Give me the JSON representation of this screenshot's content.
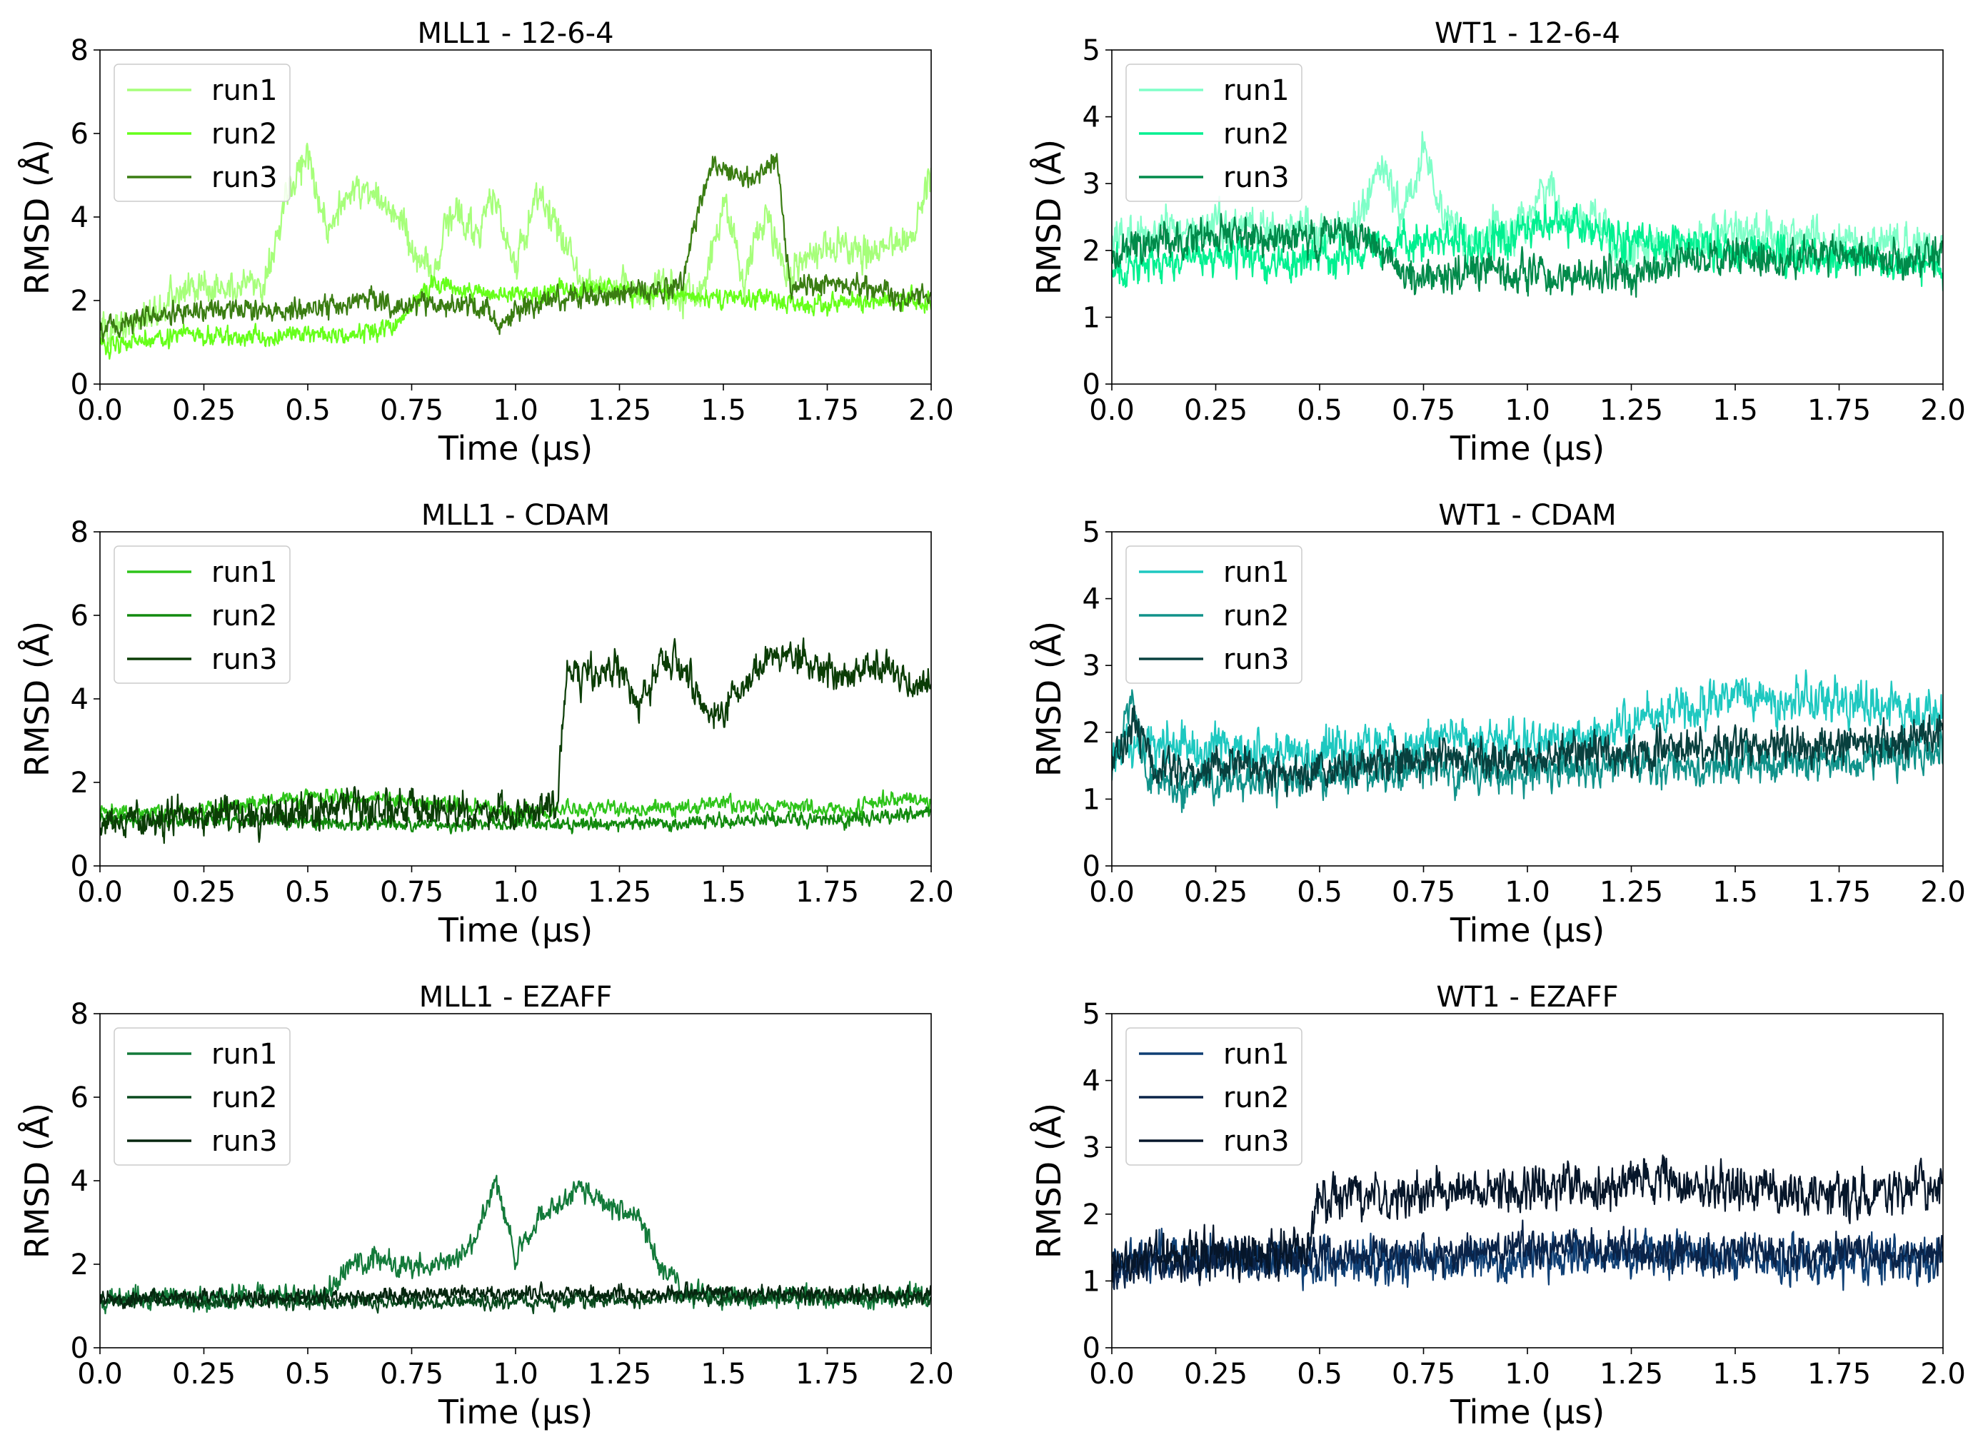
{
  "chart_data": [
    {
      "type": "line",
      "title": "MLL1 - 12-6-4",
      "xlabel": "Time (µs)",
      "ylabel": "RMSD (Å)",
      "xlim": [
        0,
        2.0
      ],
      "ylim": [
        0,
        8
      ],
      "xticks": [
        0.0,
        0.25,
        0.5,
        0.75,
        1.0,
        1.25,
        1.5,
        1.75,
        2.0
      ],
      "xtick_labels": [
        "0.0",
        "0.25",
        "0.5",
        "0.75",
        "1.0",
        "1.25",
        "1.5",
        "1.75",
        "2.0"
      ],
      "yticks": [
        0,
        2,
        4,
        6,
        8
      ],
      "ytick_labels": [
        "0",
        "2",
        "4",
        "6",
        "8"
      ],
      "legend_position": "top-left",
      "series": [
        {
          "name": "run1",
          "color": "#a6ff7a",
          "x": [
            0,
            0.1,
            0.2,
            0.3,
            0.4,
            0.45,
            0.5,
            0.55,
            0.6,
            0.65,
            0.7,
            0.75,
            0.8,
            0.85,
            0.9,
            0.95,
            1.0,
            1.05,
            1.1,
            1.15,
            1.2,
            1.25,
            1.3,
            1.35,
            1.4,
            1.45,
            1.5,
            1.55,
            1.6,
            1.65,
            1.7,
            1.75,
            1.8,
            1.85,
            1.9,
            1.95,
            2.0
          ],
          "y": [
            1.2,
            1.6,
            2.2,
            2.4,
            2.5,
            4.6,
            5.4,
            3.6,
            4.6,
            4.7,
            4.2,
            3.2,
            2.6,
            4.2,
            3.6,
            4.5,
            2.8,
            4.5,
            3.9,
            2.6,
            2.3,
            2.4,
            2.3,
            2.3,
            2.2,
            2.2,
            4.4,
            2.4,
            4.2,
            2.5,
            3.0,
            3.3,
            3.3,
            3.1,
            3.3,
            3.4,
            5.0
          ],
          "noise": 0.45
        },
        {
          "name": "run2",
          "color": "#66ff1a",
          "x": [
            0,
            0.1,
            0.2,
            0.3,
            0.4,
            0.5,
            0.6,
            0.7,
            0.75,
            0.8,
            0.9,
            1.0,
            1.1,
            1.2,
            1.3,
            1.4,
            1.5,
            1.6,
            1.65,
            1.7,
            1.8,
            1.9,
            2.0
          ],
          "y": [
            0.9,
            1.1,
            1.2,
            1.1,
            1.1,
            1.2,
            1.2,
            1.3,
            1.9,
            2.4,
            2.2,
            2.2,
            2.2,
            2.3,
            2.1,
            2.2,
            2.0,
            2.1,
            1.9,
            1.9,
            1.9,
            2.0,
            2.0
          ],
          "noise": 0.25
        },
        {
          "name": "run3",
          "color": "#3a7d12",
          "x": [
            0,
            0.1,
            0.2,
            0.3,
            0.4,
            0.5,
            0.6,
            0.65,
            0.7,
            0.8,
            0.9,
            0.97,
            1.0,
            1.05,
            1.1,
            1.15,
            1.2,
            1.3,
            1.4,
            1.43,
            1.47,
            1.5,
            1.55,
            1.6,
            1.63,
            1.66,
            1.7,
            1.8,
            1.9,
            2.0
          ],
          "y": [
            1.3,
            1.6,
            1.7,
            1.8,
            1.8,
            1.8,
            1.9,
            2.1,
            1.9,
            1.9,
            1.9,
            1.4,
            1.8,
            1.9,
            2.0,
            2.2,
            2.1,
            2.2,
            2.3,
            3.8,
            5.3,
            5.2,
            4.9,
            5.2,
            5.4,
            2.4,
            2.4,
            2.4,
            2.1,
            2.1
          ],
          "noise": 0.3
        }
      ]
    },
    {
      "type": "line",
      "title": "WT1 - 12-6-4",
      "xlabel": "Time (µs)",
      "ylabel": "RMSD (Å)",
      "xlim": [
        0,
        2.0
      ],
      "ylim": [
        0,
        5
      ],
      "xticks": [
        0.0,
        0.25,
        0.5,
        0.75,
        1.0,
        1.25,
        1.5,
        1.75,
        2.0
      ],
      "xtick_labels": [
        "0.0",
        "0.25",
        "0.5",
        "0.75",
        "1.0",
        "1.25",
        "1.5",
        "1.75",
        "2.0"
      ],
      "yticks": [
        0,
        1,
        2,
        3,
        4,
        5
      ],
      "ytick_labels": [
        "0",
        "1",
        "2",
        "3",
        "4",
        "5"
      ],
      "legend_position": "top-left",
      "series": [
        {
          "name": "run1",
          "color": "#7fffc8",
          "x": [
            0,
            0.1,
            0.2,
            0.3,
            0.4,
            0.5,
            0.6,
            0.65,
            0.7,
            0.75,
            0.8,
            0.85,
            0.9,
            1.0,
            1.05,
            1.1,
            1.15,
            1.2,
            1.3,
            1.4,
            1.5,
            1.6,
            1.7,
            1.8,
            1.9,
            2.0
          ],
          "y": [
            2.1,
            2.3,
            2.3,
            2.4,
            2.3,
            2.3,
            2.4,
            3.3,
            2.5,
            3.5,
            2.4,
            2.2,
            2.2,
            2.5,
            3.0,
            2.4,
            2.6,
            2.1,
            2.0,
            2.1,
            2.3,
            2.2,
            2.2,
            2.0,
            2.1,
            2.0
          ],
          "noise": 0.35
        },
        {
          "name": "run2",
          "color": "#00f090",
          "x": [
            0,
            0.1,
            0.2,
            0.3,
            0.4,
            0.5,
            0.6,
            0.7,
            0.8,
            0.9,
            1.0,
            1.1,
            1.2,
            1.3,
            1.4,
            1.5,
            1.6,
            1.7,
            1.8,
            1.9,
            2.0
          ],
          "y": [
            1.7,
            1.8,
            1.9,
            1.9,
            1.8,
            1.9,
            2.0,
            2.1,
            2.2,
            2.1,
            2.3,
            2.4,
            2.2,
            2.1,
            2.1,
            2.0,
            2.0,
            1.9,
            1.9,
            1.8,
            1.8
          ],
          "noise": 0.3
        },
        {
          "name": "run3",
          "color": "#008a4a",
          "x": [
            0,
            0.1,
            0.2,
            0.3,
            0.4,
            0.5,
            0.6,
            0.65,
            0.7,
            0.8,
            0.9,
            1.0,
            1.1,
            1.2,
            1.3,
            1.4,
            1.5,
            1.6,
            1.7,
            1.8,
            1.9,
            2.0
          ],
          "y": [
            1.9,
            2.1,
            2.2,
            2.2,
            2.2,
            2.2,
            2.3,
            2.0,
            1.6,
            1.6,
            1.7,
            1.6,
            1.6,
            1.6,
            1.7,
            1.9,
            1.9,
            1.8,
            1.9,
            1.9,
            1.9,
            1.9
          ],
          "noise": 0.3
        }
      ]
    },
    {
      "type": "line",
      "title": "MLL1 - CDAM",
      "xlabel": "Time (µs)",
      "ylabel": "RMSD (Å)",
      "xlim": [
        0,
        2.0
      ],
      "ylim": [
        0,
        8
      ],
      "xticks": [
        0.0,
        0.25,
        0.5,
        0.75,
        1.0,
        1.25,
        1.5,
        1.75,
        2.0
      ],
      "xtick_labels": [
        "0.0",
        "0.25",
        "0.5",
        "0.75",
        "1.0",
        "1.25",
        "1.5",
        "1.75",
        "2.0"
      ],
      "yticks": [
        0,
        2,
        4,
        6,
        8
      ],
      "ytick_labels": [
        "0",
        "2",
        "4",
        "6",
        "8"
      ],
      "legend_position": "top-left",
      "series": [
        {
          "name": "run1",
          "color": "#2ec41a",
          "x": [
            0,
            0.2,
            0.4,
            0.5,
            0.6,
            0.7,
            0.8,
            0.9,
            1.0,
            1.1,
            1.2,
            1.3,
            1.4,
            1.5,
            1.6,
            1.7,
            1.8,
            1.9,
            2.0
          ],
          "y": [
            1.3,
            1.3,
            1.5,
            1.7,
            1.6,
            1.6,
            1.5,
            1.4,
            1.3,
            1.3,
            1.4,
            1.4,
            1.4,
            1.5,
            1.4,
            1.4,
            1.3,
            1.6,
            1.6
          ],
          "noise": 0.2
        },
        {
          "name": "run2",
          "color": "#128a0e",
          "x": [
            0,
            0.2,
            0.4,
            0.6,
            0.8,
            1.0,
            1.2,
            1.4,
            1.6,
            1.8,
            2.0
          ],
          "y": [
            1.1,
            1.1,
            1.1,
            1.0,
            1.0,
            1.0,
            1.0,
            1.0,
            1.1,
            1.1,
            1.3
          ],
          "noise": 0.18
        },
        {
          "name": "run3",
          "color": "#0b3d06",
          "x": [
            0,
            0.2,
            0.4,
            0.5,
            0.6,
            0.8,
            1.0,
            1.1,
            1.12,
            1.15,
            1.25,
            1.3,
            1.35,
            1.4,
            1.45,
            1.5,
            1.55,
            1.6,
            1.7,
            1.8,
            1.9,
            1.95,
            2.0
          ],
          "y": [
            1.0,
            1.2,
            1.2,
            1.3,
            1.4,
            1.4,
            1.3,
            1.4,
            4.5,
            4.6,
            4.8,
            3.8,
            5.0,
            4.8,
            3.8,
            3.6,
            4.4,
            5.0,
            4.9,
            4.6,
            4.8,
            4.2,
            4.5
          ],
          "noise": 0.45
        }
      ]
    },
    {
      "type": "line",
      "title": "WT1 - CDAM",
      "xlabel": "Time (µs)",
      "ylabel": "RMSD (Å)",
      "xlim": [
        0,
        2.0
      ],
      "ylim": [
        0,
        5
      ],
      "xticks": [
        0.0,
        0.25,
        0.5,
        0.75,
        1.0,
        1.25,
        1.5,
        1.75,
        2.0
      ],
      "xtick_labels": [
        "0.0",
        "0.25",
        "0.5",
        "0.75",
        "1.0",
        "1.25",
        "1.5",
        "1.75",
        "2.0"
      ],
      "yticks": [
        0,
        1,
        2,
        3,
        4,
        5
      ],
      "ytick_labels": [
        "0",
        "1",
        "2",
        "3",
        "4",
        "5"
      ],
      "legend_position": "top-left",
      "series": [
        {
          "name": "run1",
          "color": "#1ec8c0",
          "x": [
            0,
            0.1,
            0.2,
            0.3,
            0.4,
            0.5,
            0.6,
            0.7,
            0.8,
            0.9,
            1.0,
            1.1,
            1.2,
            1.3,
            1.4,
            1.5,
            1.6,
            1.7,
            1.8,
            1.9,
            2.0
          ],
          "y": [
            1.6,
            1.8,
            1.7,
            1.8,
            1.7,
            1.7,
            1.8,
            1.7,
            1.9,
            1.8,
            1.9,
            1.9,
            2.0,
            2.2,
            2.4,
            2.6,
            2.4,
            2.5,
            2.4,
            2.3,
            2.3
          ],
          "noise": 0.35
        },
        {
          "name": "run2",
          "color": "#10928a",
          "x": [
            0,
            0.05,
            0.08,
            0.15,
            0.3,
            0.4,
            0.5,
            0.6,
            0.8,
            1.0,
            1.2,
            1.4,
            1.6,
            1.8,
            2.0
          ],
          "y": [
            1.4,
            2.6,
            1.3,
            1.2,
            1.3,
            1.3,
            1.3,
            1.4,
            1.4,
            1.4,
            1.5,
            1.5,
            1.5,
            1.6,
            1.7
          ],
          "noise": 0.3
        },
        {
          "name": "run3",
          "color": "#08403e",
          "x": [
            0,
            0.06,
            0.1,
            0.2,
            0.3,
            0.4,
            0.6,
            0.8,
            1.0,
            1.2,
            1.4,
            1.6,
            1.8,
            2.0
          ],
          "y": [
            1.6,
            2.2,
            1.5,
            1.4,
            1.6,
            1.4,
            1.5,
            1.6,
            1.6,
            1.7,
            1.8,
            1.8,
            1.8,
            2.0
          ],
          "noise": 0.3
        }
      ]
    },
    {
      "type": "line",
      "title": "MLL1 - EZAFF",
      "xlabel": "Time (µs)",
      "ylabel": "RMSD (Å)",
      "xlim": [
        0,
        2.0
      ],
      "ylim": [
        0,
        8
      ],
      "xticks": [
        0.0,
        0.25,
        0.5,
        0.75,
        1.0,
        1.25,
        1.5,
        1.75,
        2.0
      ],
      "xtick_labels": [
        "0.0",
        "0.25",
        "0.5",
        "0.75",
        "1.0",
        "1.25",
        "1.5",
        "1.75",
        "2.0"
      ],
      "yticks": [
        0,
        2,
        4,
        6,
        8
      ],
      "ytick_labels": [
        "0",
        "2",
        "4",
        "6",
        "8"
      ],
      "legend_position": "top-left",
      "series": [
        {
          "name": "run1",
          "color": "#137a3a",
          "x": [
            0,
            0.2,
            0.4,
            0.55,
            0.6,
            0.7,
            0.8,
            0.9,
            0.95,
            1.0,
            1.05,
            1.1,
            1.15,
            1.2,
            1.25,
            1.3,
            1.35,
            1.4,
            1.6,
            1.8,
            2.0
          ],
          "y": [
            1.2,
            1.2,
            1.2,
            1.3,
            2.1,
            2.0,
            1.9,
            2.5,
            4.0,
            2.2,
            3.1,
            3.3,
            3.9,
            3.6,
            3.3,
            3.1,
            2.0,
            1.3,
            1.2,
            1.2,
            1.2
          ],
          "noise": 0.3
        },
        {
          "name": "run2",
          "color": "#0a4a1e",
          "x": [
            0,
            0.2,
            0.4,
            0.6,
            0.8,
            1.0,
            1.2,
            1.4,
            1.6,
            1.8,
            2.0
          ],
          "y": [
            1.1,
            1.1,
            1.1,
            1.1,
            1.1,
            1.1,
            1.1,
            1.2,
            1.2,
            1.2,
            1.2
          ],
          "noise": 0.18
        },
        {
          "name": "run3",
          "color": "#06260f",
          "x": [
            0,
            0.2,
            0.4,
            0.6,
            0.8,
            1.0,
            1.2,
            1.4,
            1.6,
            1.8,
            2.0
          ],
          "y": [
            1.2,
            1.2,
            1.2,
            1.2,
            1.3,
            1.3,
            1.3,
            1.3,
            1.3,
            1.3,
            1.3
          ],
          "noise": 0.2
        }
      ]
    },
    {
      "type": "line",
      "title": "WT1 - EZAFF",
      "xlabel": "Time (µs)",
      "ylabel": "RMSD (Å)",
      "xlim": [
        0,
        2.0
      ],
      "ylim": [
        0,
        5
      ],
      "xticks": [
        0.0,
        0.25,
        0.5,
        0.75,
        1.0,
        1.25,
        1.5,
        1.75,
        2.0
      ],
      "xtick_labels": [
        "0.0",
        "0.25",
        "0.5",
        "0.75",
        "1.0",
        "1.25",
        "1.5",
        "1.75",
        "2.0"
      ],
      "yticks": [
        0,
        1,
        2,
        3,
        4,
        5
      ],
      "ytick_labels": [
        "0",
        "1",
        "2",
        "3",
        "4",
        "5"
      ],
      "legend_position": "top-left",
      "series": [
        {
          "name": "run1",
          "color": "#0f3f74",
          "x": [
            0,
            0.2,
            0.4,
            0.6,
            0.8,
            1.0,
            1.2,
            1.4,
            1.6,
            1.8,
            2.0
          ],
          "y": [
            1.3,
            1.4,
            1.3,
            1.3,
            1.3,
            1.3,
            1.4,
            1.4,
            1.3,
            1.3,
            1.3
          ],
          "noise": 0.35
        },
        {
          "name": "run2",
          "color": "#0a2348",
          "x": [
            0,
            0.2,
            0.4,
            0.6,
            0.8,
            1.0,
            1.2,
            1.4,
            1.6,
            1.8,
            2.0
          ],
          "y": [
            1.2,
            1.3,
            1.3,
            1.4,
            1.4,
            1.5,
            1.5,
            1.4,
            1.4,
            1.4,
            1.4
          ],
          "noise": 0.3
        },
        {
          "name": "run3",
          "color": "#06162a",
          "x": [
            0,
            0.2,
            0.4,
            0.47,
            0.5,
            0.6,
            0.8,
            1.0,
            1.2,
            1.3,
            1.4,
            1.6,
            1.8,
            2.0
          ],
          "y": [
            1.3,
            1.4,
            1.4,
            1.5,
            2.3,
            2.3,
            2.3,
            2.4,
            2.4,
            2.6,
            2.4,
            2.3,
            2.3,
            2.4
          ],
          "noise": 0.35
        }
      ]
    }
  ]
}
